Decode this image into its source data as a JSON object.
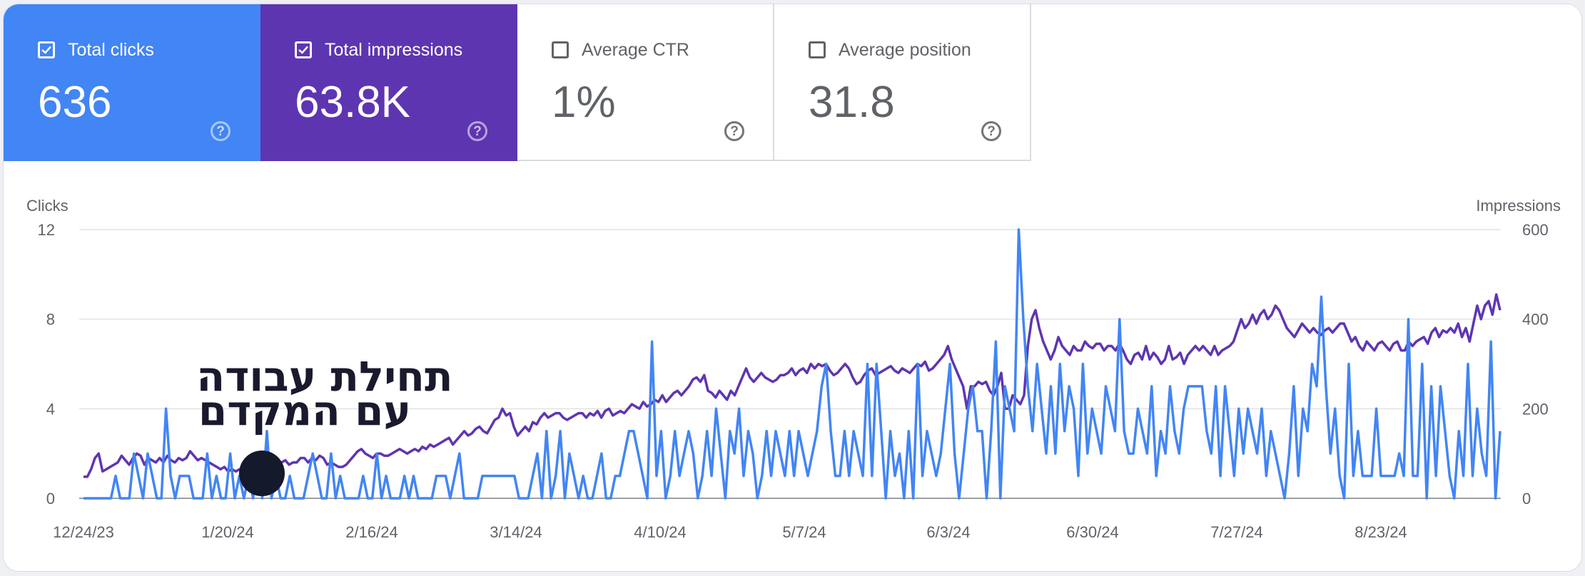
{
  "metrics": [
    {
      "label": "Total clicks",
      "value": "636",
      "checked": true,
      "color": "#4285f4"
    },
    {
      "label": "Total impressions",
      "value": "63.8K",
      "checked": true,
      "color": "#5e35b1"
    },
    {
      "label": "Average CTR",
      "value": "1%",
      "checked": false,
      "color": "#ffffff"
    },
    {
      "label": "Average position",
      "value": "31.8",
      "checked": false,
      "color": "#ffffff"
    }
  ],
  "annotation": {
    "line1": "תחילת עבודה",
    "line2": "עם המקדם"
  },
  "chart_data": {
    "type": "line",
    "ylabel": "Clicks",
    "y2label": "Impressions",
    "yticks": [
      "0",
      "4",
      "8",
      "12"
    ],
    "y2ticks": [
      "0",
      "200",
      "400",
      "600"
    ],
    "ylim": [
      0,
      12
    ],
    "y2lim": [
      0,
      600
    ],
    "xticks": [
      "12/24/23",
      "1/20/24",
      "2/16/24",
      "3/14/24",
      "4/10/24",
      "5/7/24",
      "6/3/24",
      "6/30/24",
      "7/27/24",
      "8/23/24"
    ],
    "grid": true,
    "series": [
      {
        "name": "Clicks",
        "color": "#4285f4",
        "axis": "left",
        "values": [
          0,
          0,
          0,
          0,
          0,
          0,
          0,
          1,
          0,
          0,
          0,
          2,
          1,
          0,
          2,
          1,
          0,
          0,
          4,
          1,
          0,
          1,
          1,
          1,
          0,
          0,
          0,
          2,
          0,
          1,
          0,
          0,
          2,
          0,
          1,
          0,
          1,
          0,
          2,
          0,
          3,
          0,
          1,
          0,
          0,
          1,
          0,
          0,
          0,
          1,
          2,
          1,
          0,
          0,
          2,
          0,
          1,
          0,
          0,
          0,
          0,
          1,
          0,
          0,
          2,
          0,
          1,
          0,
          0,
          0,
          1,
          0,
          1,
          0,
          0,
          0,
          0,
          1,
          1,
          1,
          0,
          1,
          2,
          0,
          0,
          0,
          0,
          1,
          1,
          1,
          1,
          1,
          1,
          1,
          1,
          0,
          0,
          0,
          1,
          2,
          0,
          3,
          0,
          1,
          3,
          0,
          2,
          1,
          0,
          1,
          0,
          0,
          1,
          2,
          0,
          0,
          1,
          1,
          2,
          3,
          3,
          2,
          1,
          0,
          7,
          1,
          3,
          0,
          1,
          3,
          1,
          2,
          3,
          2,
          0,
          1,
          3,
          1,
          4,
          2,
          0,
          3,
          2,
          4,
          1,
          3,
          2,
          0,
          1,
          3,
          1,
          3,
          2,
          1,
          3,
          1,
          3,
          2,
          1,
          2,
          3,
          5,
          6,
          3,
          1,
          1,
          3,
          1,
          3,
          2,
          1,
          6,
          1,
          6,
          3,
          0,
          3,
          1,
          2,
          0,
          3,
          0,
          6,
          1,
          3,
          2,
          1,
          2,
          4,
          6,
          2,
          0,
          2,
          4,
          5,
          3,
          3,
          0,
          3,
          7,
          0,
          5,
          4,
          3,
          12,
          8,
          5,
          3,
          6,
          4,
          2,
          5,
          2,
          6,
          3,
          5,
          4,
          1,
          6,
          2,
          4,
          3,
          2,
          5,
          4,
          3,
          8,
          3,
          2,
          2,
          4,
          3,
          2,
          5,
          1,
          3,
          2,
          5,
          3,
          2,
          4,
          5,
          5,
          5,
          5,
          3,
          2,
          5,
          1,
          5,
          3,
          1,
          4,
          2,
          4,
          3,
          2,
          4,
          1,
          3,
          2,
          1,
          0,
          2,
          5,
          1,
          4,
          3,
          6,
          5,
          9,
          5,
          2,
          4,
          1,
          0,
          6,
          1,
          3,
          1,
          1,
          1,
          4,
          1,
          1,
          1,
          1,
          2,
          1,
          8,
          1,
          1,
          6,
          0,
          5,
          1,
          5,
          3,
          1,
          0,
          3,
          1,
          6,
          1,
          4,
          2,
          1,
          7,
          0,
          3
        ]
      },
      {
        "name": "Impressions",
        "color": "#5e35b1",
        "axis": "right",
        "values": [
          48,
          48,
          65,
          90,
          100,
          60,
          65,
          70,
          75,
          80,
          95,
          85,
          75,
          90,
          100,
          95,
          75,
          90,
          85,
          80,
          90,
          80,
          95,
          85,
          80,
          90,
          85,
          90,
          105,
          95,
          85,
          90,
          85,
          80,
          75,
          70,
          65,
          70,
          60,
          65,
          60,
          65,
          65,
          70,
          75,
          70,
          80,
          70,
          80,
          65,
          70,
          70,
          80,
          85,
          75,
          80,
          80,
          90,
          90,
          80,
          90,
          85,
          95,
          90,
          75,
          80,
          75,
          70,
          70,
          75,
          85,
          95,
          105,
          110,
          100,
          95,
          90,
          100,
          100,
          95,
          95,
          100,
          105,
          110,
          105,
          100,
          105,
          110,
          105,
          115,
          110,
          120,
          115,
          120,
          125,
          130,
          135,
          120,
          130,
          140,
          150,
          140,
          145,
          155,
          160,
          150,
          145,
          160,
          175,
          180,
          200,
          185,
          190,
          160,
          140,
          150,
          160,
          150,
          170,
          165,
          180,
          190,
          180,
          185,
          190,
          190,
          180,
          175,
          180,
          185,
          190,
          190,
          180,
          190,
          185,
          195,
          180,
          195,
          200,
          185,
          190,
          195,
          190,
          200,
          210,
          205,
          200,
          215,
          205,
          210,
          220,
          215,
          230,
          215,
          225,
          235,
          240,
          230,
          240,
          250,
          265,
          270,
          260,
          275,
          240,
          235,
          225,
          240,
          230,
          220,
          240,
          230,
          250,
          270,
          290,
          270,
          260,
          270,
          280,
          270,
          265,
          260,
          265,
          275,
          275,
          280,
          290,
          275,
          285,
          290,
          280,
          300,
          290,
          300,
          295,
          300,
          285,
          275,
          280,
          290,
          300,
          290,
          270,
          255,
          260,
          275,
          285,
          290,
          275,
          280,
          285,
          290,
          295,
          285,
          280,
          290,
          285,
          280,
          290,
          300,
          295,
          305,
          285,
          290,
          300,
          310,
          320,
          340,
          310,
          290,
          270,
          250,
          200,
          250,
          250,
          260,
          255,
          260,
          240,
          230,
          250,
          280,
          200,
          200,
          230,
          220,
          210,
          230,
          340,
          400,
          420,
          380,
          350,
          330,
          310,
          330,
          360,
          340,
          330,
          320,
          340,
          330,
          330,
          350,
          340,
          335,
          345,
          345,
          330,
          340,
          340,
          330,
          345,
          330,
          310,
          300,
          320,
          325,
          310,
          340,
          310,
          325,
          315,
          300,
          310,
          340,
          310,
          315,
          325,
          300,
          320,
          330,
          340,
          330,
          340,
          330,
          320,
          340,
          320,
          330,
          335,
          340,
          350,
          375,
          400,
          380,
          390,
          410,
          390,
          410,
          420,
          400,
          410,
          430,
          420,
          400,
          380,
          370,
          360,
          375,
          390,
          380,
          370,
          380,
          370,
          365,
          375,
          380,
          370,
          380,
          390,
          390,
          370,
          350,
          360,
          340,
          330,
          350,
          340,
          330,
          345,
          350,
          340,
          330,
          345,
          350,
          330,
          330,
          350,
          340,
          350,
          355,
          360,
          345,
          370,
          380,
          360,
          375,
          370,
          380,
          370,
          390,
          360,
          380,
          350,
          390,
          430,
          400,
          430,
          440,
          410,
          455,
          420
        ]
      }
    ]
  }
}
